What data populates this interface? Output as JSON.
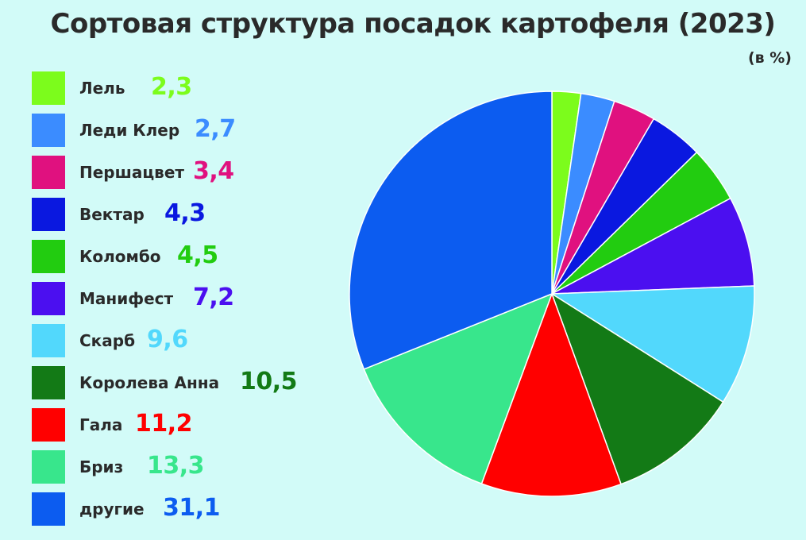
{
  "chart_data": {
    "type": "pie",
    "title": "Сортовая структура посадок картофеля (2023)",
    "unit": "(в %)",
    "legend_position": "left",
    "slices": [
      {
        "label": "Лель",
        "value": 2.3,
        "display": "2,3",
        "color": "#7cfc1c"
      },
      {
        "label": "Леди Клер",
        "value": 2.7,
        "display": "2,7",
        "color": "#3b8cff"
      },
      {
        "label": "Першацвет",
        "value": 3.4,
        "display": "3,4",
        "color": "#e0117f"
      },
      {
        "label": "Вектар",
        "value": 4.3,
        "display": "4,3",
        "color": "#0a18e0"
      },
      {
        "label": "Коломбо",
        "value": 4.5,
        "display": "4,5",
        "color": "#22cc10"
      },
      {
        "label": "Манифест",
        "value": 7.2,
        "display": "7,2",
        "color": "#4b0ff0"
      },
      {
        "label": "Скарб",
        "value": 9.6,
        "display": "9,6",
        "color": "#52d8fc"
      },
      {
        "label": "Королева Анна",
        "value": 10.5,
        "display": "10,5",
        "color": "#137a16"
      },
      {
        "label": "Гала",
        "value": 11.2,
        "display": "11,2",
        "color": "#ff0000"
      },
      {
        "label": "Бриз",
        "value": 13.3,
        "display": "13,3",
        "color": "#38e68c"
      },
      {
        "label": "другие",
        "value": 31.1,
        "display": "31,1",
        "color": "#0c5cf0"
      }
    ]
  }
}
